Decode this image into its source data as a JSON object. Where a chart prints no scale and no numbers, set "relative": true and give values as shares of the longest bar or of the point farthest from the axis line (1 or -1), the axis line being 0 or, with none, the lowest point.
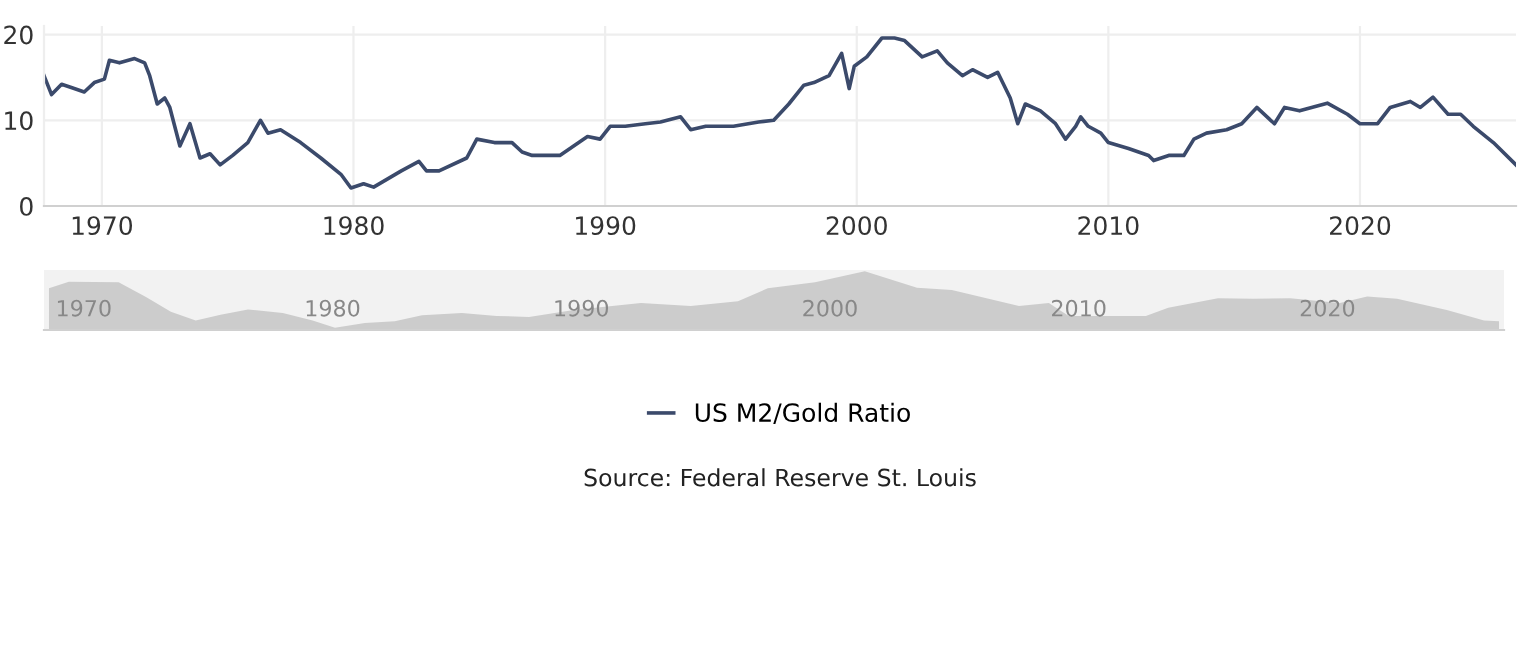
{
  "chart_data": [
    {
      "type": "line",
      "x": [
        1967.7,
        1968.0,
        1968.4,
        1968.9,
        1969.3,
        1969.7,
        1970.1,
        1970.3,
        1970.7,
        1971.3,
        1971.7,
        1971.9,
        1972.2,
        1972.5,
        1972.7,
        1973.1,
        1973.5,
        1973.9,
        1974.3,
        1974.7,
        1975.2,
        1975.8,
        1976.3,
        1976.6,
        1977.1,
        1977.9,
        1978.7,
        1979.5,
        1979.9,
        1980.4,
        1980.8,
        1981.9,
        1982.6,
        1982.9,
        1983.4,
        1984.5,
        1984.9,
        1985.6,
        1986.3,
        1986.7,
        1987.1,
        1988.2,
        1989.3,
        1989.8,
        1990.2,
        1990.8,
        1991.6,
        1992.2,
        1993.0,
        1993.4,
        1994.0,
        1995.1,
        1996.1,
        1996.7,
        1997.3,
        1997.9,
        1998.3,
        1998.9,
        1999.4,
        1999.7,
        1999.9,
        2000.4,
        2001.0,
        2001.5,
        2001.9,
        2002.6,
        2003.2,
        2003.6,
        2004.2,
        2004.6,
        2005.2,
        2005.6,
        2006.1,
        2006.4,
        2006.7,
        2007.3,
        2007.9,
        2008.3,
        2008.7,
        2008.9,
        2009.2,
        2009.7,
        2010.0,
        2010.8,
        2011.6,
        2011.8,
        2012.4,
        2013.0,
        2013.4,
        2013.9,
        2014.7,
        2015.3,
        2015.9,
        2016.6,
        2017.0,
        2017.6,
        2018.7,
        2019.5,
        2020.0,
        2020.7,
        2021.2,
        2022.0,
        2022.4,
        2022.9,
        2023.5,
        2024.0,
        2024.5,
        2025.3,
        2026.2
      ],
      "series": [
        {
          "name": "US M2/Gold Ratio",
          "color": "#3b4a6b",
          "values": [
            15.2,
            13.0,
            14.2,
            13.7,
            13.3,
            14.4,
            14.8,
            17.0,
            16.7,
            17.2,
            16.7,
            15.2,
            11.9,
            12.6,
            11.5,
            7.0,
            9.6,
            5.6,
            6.1,
            4.8,
            5.9,
            7.4,
            10.0,
            8.5,
            8.9,
            7.4,
            5.6,
            3.7,
            2.1,
            2.6,
            2.2,
            4.1,
            5.2,
            4.1,
            4.1,
            5.6,
            7.8,
            7.4,
            7.4,
            6.3,
            5.9,
            5.9,
            8.1,
            7.8,
            9.3,
            9.3,
            9.6,
            9.8,
            10.4,
            8.9,
            9.3,
            9.3,
            9.8,
            10.0,
            11.9,
            14.1,
            14.4,
            15.2,
            17.8,
            13.7,
            16.3,
            17.4,
            19.6,
            19.6,
            19.3,
            17.4,
            18.1,
            16.7,
            15.2,
            15.9,
            15.0,
            15.6,
            12.6,
            9.6,
            11.9,
            11.1,
            9.6,
            7.8,
            9.3,
            10.4,
            9.3,
            8.5,
            7.4,
            6.7,
            5.9,
            5.3,
            5.9,
            5.9,
            7.8,
            8.5,
            8.9,
            9.6,
            11.5,
            9.6,
            11.5,
            11.1,
            12.0,
            10.7,
            9.6,
            9.6,
            11.5,
            12.2,
            11.5,
            12.7,
            10.7,
            10.7,
            9.3,
            7.4,
            4.8
          ]
        }
      ],
      "xlim": [
        1967.7,
        2026.2
      ],
      "xticks": [
        1970,
        1980,
        1990,
        2000,
        2010,
        2020
      ],
      "ylim": [
        0,
        21
      ],
      "yticks": [
        0,
        10,
        20
      ],
      "grid": true,
      "legend": "bottom",
      "annotations": [
        "Source: Federal Reserve St. Louis"
      ]
    },
    {
      "type": "area",
      "relative": true,
      "tick_labels": "x",
      "x": [
        1968.6,
        1969.4,
        1971.4,
        1972.5,
        1973.5,
        1974.5,
        1975.5,
        1976.6,
        1978.0,
        1979.2,
        1980.1,
        1981.3,
        1982.5,
        1983.6,
        1985.2,
        1986.6,
        1987.9,
        1989.7,
        1992.4,
        1994.4,
        1996.3,
        1997.5,
        1999.4,
        2001.4,
        2003.5,
        2004.9,
        2007.6,
        2008.8,
        2009.6,
        2012.7,
        2013.6,
        2015.6,
        2017.0,
        2018.5,
        2020.5,
        2021.6,
        2022.8,
        2024.8,
        2026.3,
        2026.9
      ],
      "series": [
        {
          "color": "#cccccc",
          "values": [
            0.71,
            0.82,
            0.81,
            0.56,
            0.31,
            0.16,
            0.26,
            0.35,
            0.29,
            0.16,
            0.04,
            0.12,
            0.15,
            0.25,
            0.29,
            0.24,
            0.22,
            0.34,
            0.46,
            0.41,
            0.49,
            0.71,
            0.81,
            1.0,
            0.72,
            0.68,
            0.41,
            0.46,
            0.24,
            0.24,
            0.38,
            0.54,
            0.53,
            0.54,
            0.46,
            0.57,
            0.53,
            0.34,
            0.16,
            0.15
          ]
        }
      ],
      "xlim": [
        1968.4,
        2027.1
      ],
      "xticks": [
        1970,
        1980,
        1990,
        2000,
        2010,
        2020
      ]
    }
  ]
}
